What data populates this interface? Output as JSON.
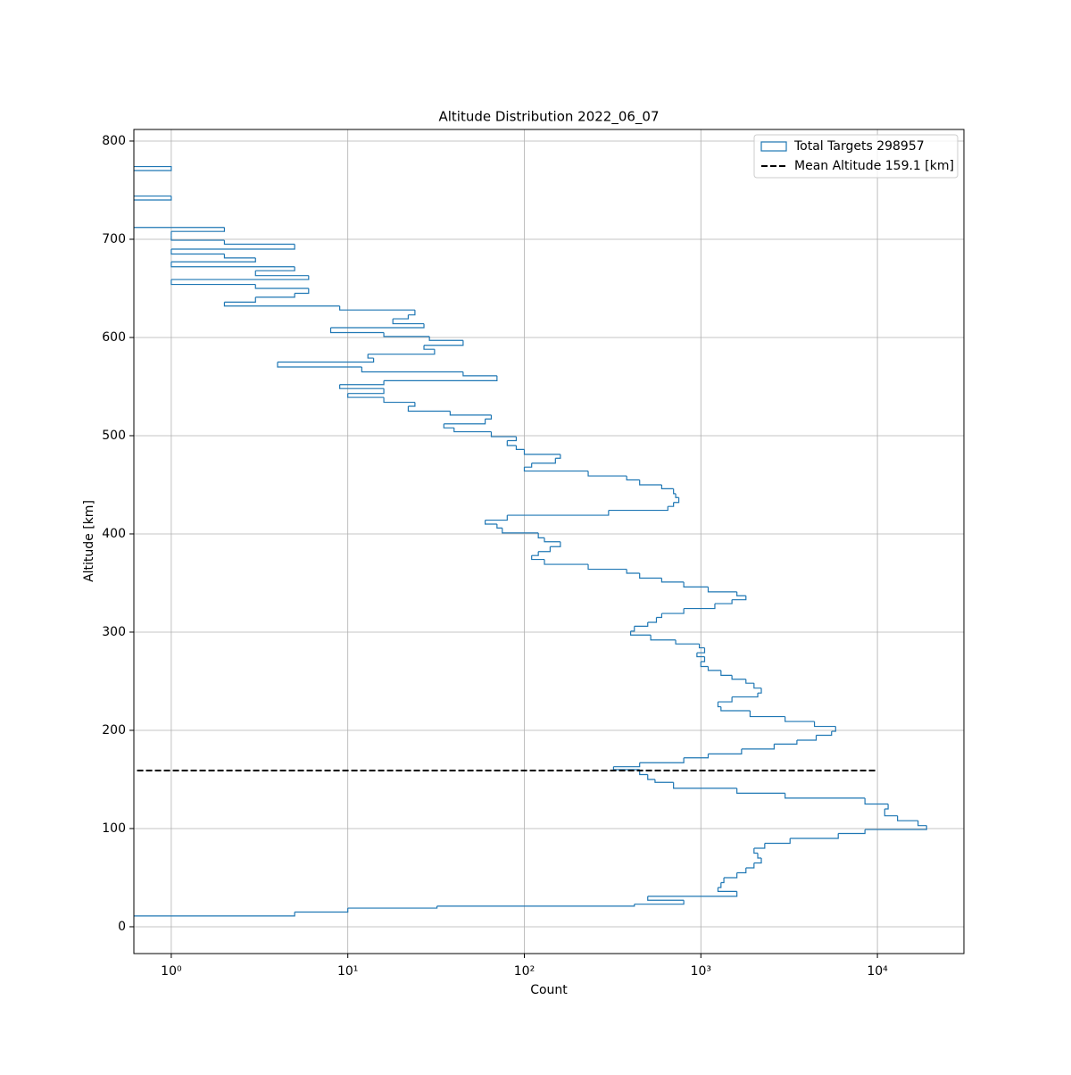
{
  "chart_data": {
    "type": "histogram",
    "orientation": "horizontal",
    "title": "Altitude Distribution 2022_06_07",
    "x_label": "Count",
    "y_label": "Altitude [km]",
    "x_scale": "log",
    "grid": true,
    "legend_loc": "upper right",
    "xlim": [
      0.614,
      30900
    ],
    "ylim": [
      -27.3,
      811.8
    ],
    "xticks": [
      {
        "value": 1,
        "label": "10⁰"
      },
      {
        "value": 10,
        "label": "10¹"
      },
      {
        "value": 100,
        "label": "10²"
      },
      {
        "value": 1000,
        "label": "10³"
      },
      {
        "value": 10000,
        "label": "10⁴"
      }
    ],
    "yticks": [
      0,
      100,
      200,
      300,
      400,
      500,
      600,
      700,
      800
    ],
    "series": [
      {
        "name": "Total Targets 298957",
        "color": "#1f77b4",
        "bins": [
          11,
          15,
          19,
          21,
          23,
          27,
          31,
          36,
          40,
          45,
          50,
          55,
          60,
          65,
          70,
          75,
          80,
          85,
          90,
          95,
          99,
          103,
          108,
          113,
          120,
          125,
          131,
          136,
          141,
          147,
          150,
          155,
          160,
          163,
          167,
          172,
          176,
          181,
          186,
          190,
          195,
          199,
          204,
          209,
          214,
          220,
          224,
          229,
          234,
          238,
          243,
          248,
          252,
          256,
          261,
          265,
          270,
          275,
          279,
          284,
          288,
          292,
          297,
          301,
          306,
          310,
          315,
          319,
          324,
          329,
          333,
          337,
          341,
          346,
          351,
          355,
          360,
          364,
          369,
          374,
          378,
          382,
          387,
          392,
          396,
          401,
          406,
          410,
          414,
          419,
          424,
          428,
          432,
          437,
          441,
          446,
          450,
          455,
          459,
          464,
          468,
          472,
          477,
          481,
          486,
          490,
          495,
          499,
          504,
          508,
          512,
          517,
          521,
          525,
          530,
          534,
          539,
          543,
          548,
          552,
          556,
          561,
          565,
          570,
          575,
          579,
          583,
          588,
          592,
          597,
          601,
          605,
          610,
          614,
          619,
          623,
          628,
          632,
          636,
          641,
          645,
          650,
          654,
          659,
          663,
          668,
          672,
          677,
          681,
          685,
          690,
          695,
          699,
          704,
          708,
          712,
          740,
          744,
          770,
          774
        ],
        "values": [
          5,
          10,
          32,
          420,
          800,
          500,
          1600,
          1250,
          1300,
          1350,
          1600,
          1800,
          2000,
          2200,
          2100,
          2000,
          2300,
          3200,
          6000,
          8500,
          19000,
          17000,
          13000,
          11000,
          11500,
          8500,
          3000,
          1600,
          700,
          550,
          500,
          450,
          320,
          450,
          800,
          1100,
          1700,
          2600,
          3500,
          4500,
          5500,
          5800,
          4400,
          3000,
          1900,
          1300,
          1250,
          1500,
          2100,
          2200,
          2000,
          1800,
          1500,
          1300,
          1100,
          1000,
          1050,
          950,
          1050,
          980,
          720,
          520,
          400,
          420,
          500,
          560,
          600,
          800,
          1200,
          1500,
          1800,
          1600,
          1100,
          800,
          600,
          450,
          380,
          230,
          130,
          110,
          120,
          140,
          160,
          130,
          120,
          75,
          70,
          60,
          80,
          300,
          650,
          700,
          750,
          720,
          700,
          600,
          450,
          380,
          230,
          100,
          110,
          150,
          160,
          100,
          90,
          80,
          90,
          65,
          40,
          35,
          60,
          65,
          38,
          22,
          24,
          16,
          10,
          16,
          9,
          16,
          70,
          45,
          12,
          4,
          14,
          13,
          31,
          27,
          45,
          29,
          16,
          8,
          27,
          18,
          22,
          24,
          9,
          2,
          3,
          5,
          6,
          3,
          1,
          6,
          3,
          5,
          1,
          3,
          2,
          1,
          5,
          2,
          1,
          1,
          2,
          0,
          1,
          0,
          1
        ]
      }
    ],
    "mean_line": {
      "name": "Mean Altitude 159.1 [km]",
      "color": "#000000",
      "value": 159.1,
      "xrange": [
        0.64,
        10000
      ]
    }
  }
}
